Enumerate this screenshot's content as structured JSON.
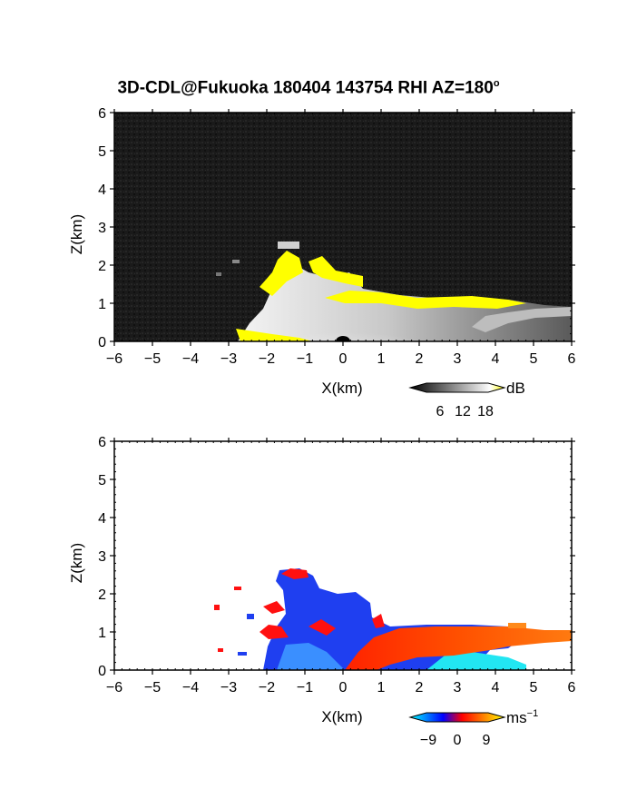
{
  "title": "3D-CDL@Fukuoka 180404 143754 RHI AZ=180",
  "title_suffix": "o",
  "chart_data": [
    {
      "type": "heatmap",
      "name": "",
      "xlabel": "X(km)",
      "ylabel": "Z(km)",
      "xlim": [
        -6,
        6
      ],
      "ylim": [
        0,
        6
      ],
      "xticks": [
        -6,
        -5,
        -4,
        -3,
        -2,
        -1,
        0,
        1,
        2,
        3,
        4,
        5,
        6
      ],
      "yticks": [
        0,
        1,
        2,
        3,
        4,
        5,
        6
      ],
      "colorbar": {
        "unit": "dB",
        "ticks": [
          "6",
          "12",
          "18"
        ],
        "colors": [
          "#000000",
          "#ffffff",
          "#ffff00"
        ]
      },
      "background_color": "#1a1a1a"
    },
    {
      "type": "heatmap",
      "name": "",
      "xlabel": "X(km)",
      "ylabel": "Z(km)",
      "xlim": [
        -6,
        6
      ],
      "ylim": [
        0,
        6
      ],
      "xticks": [
        -6,
        -5,
        -4,
        -3,
        -2,
        -1,
        0,
        1,
        2,
        3,
        4,
        5,
        6
      ],
      "yticks": [
        0,
        1,
        2,
        3,
        4,
        5,
        6
      ],
      "colorbar": {
        "unit": "ms",
        "unit_exp": "−1",
        "ticks": [
          "−9",
          "0",
          "9"
        ],
        "colors": [
          "#00ffff",
          "#0000ff",
          "#ff0000",
          "#ffff00"
        ]
      },
      "background_color": "#ffffff"
    }
  ]
}
